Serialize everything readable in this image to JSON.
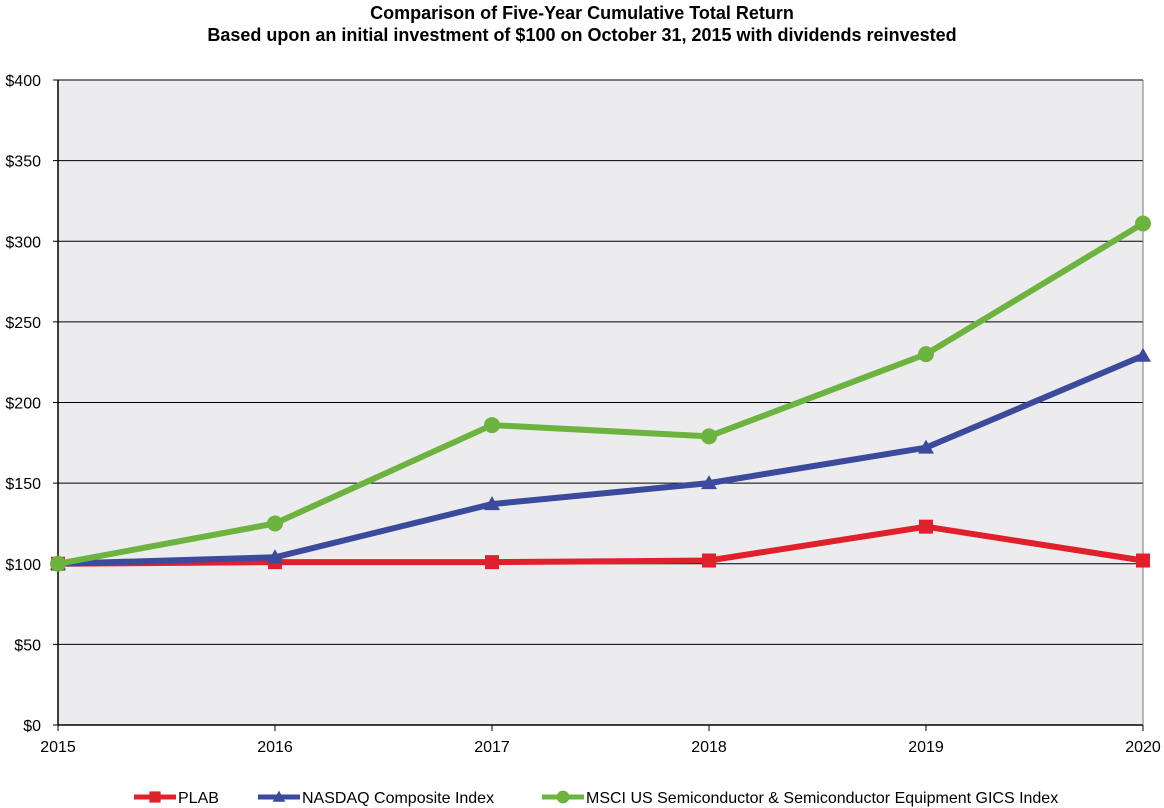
{
  "title": "Comparison of Five-Year Cumulative Total Return",
  "subtitle": "Based upon an initial investment of $100 on October 31, 2015 with dividends reinvested",
  "chart_data": {
    "type": "line",
    "title": "Comparison of Five-Year Cumulative Total Return",
    "subtitle": "Based upon an initial investment of $100 on October 31, 2015 with dividends reinvested",
    "categories": [
      "2015",
      "2016",
      "2017",
      "2018",
      "2019",
      "2020"
    ],
    "ylim": [
      0,
      400
    ],
    "yticks": [
      0,
      50,
      100,
      150,
      200,
      250,
      300,
      350,
      400
    ],
    "ytick_labels": [
      "$0",
      "$50",
      "$100",
      "$150",
      "$200",
      "$250",
      "$300",
      "$350",
      "$400"
    ],
    "grid": true,
    "legend_position": "bottom",
    "series": [
      {
        "name": "PLAB",
        "color": "#e0202a",
        "marker": "square",
        "values": [
          100,
          101,
          101,
          102,
          123,
          102
        ]
      },
      {
        "name": "NASDAQ Composite Index",
        "color": "#3b4a9c",
        "marker": "triangle",
        "values": [
          100,
          104,
          137,
          150,
          172,
          229
        ]
      },
      {
        "name": "MSCI US Semiconductor & Semiconductor Equipment GICS Index",
        "color": "#6cb33f",
        "marker": "circle",
        "values": [
          100,
          125,
          186,
          179,
          230,
          311
        ]
      }
    ]
  }
}
